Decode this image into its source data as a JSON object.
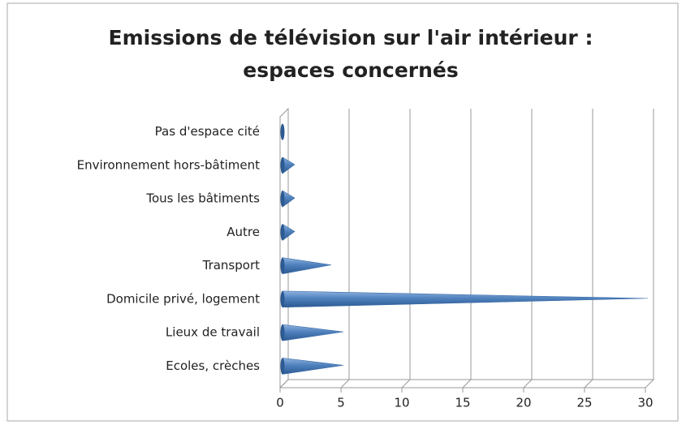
{
  "chart_data": {
    "type": "bar",
    "orientation": "horizontal",
    "title": [
      "Emissions de télévision sur l'air intérieur :",
      "espaces concernés"
    ],
    "categories": [
      "Pas d'espace cité",
      "Environnement hors-bâtiment",
      "Tous les bâtiments",
      "Autre",
      "Transport",
      "Domicile privé, logement",
      "Lieux de travail",
      "Ecoles, crèches"
    ],
    "values": [
      0,
      1,
      1,
      1,
      4,
      30,
      5,
      5
    ],
    "color": "#4f81bd",
    "xlim": [
      0,
      30
    ],
    "xticks": [
      0,
      5,
      10,
      15,
      20,
      25,
      30
    ],
    "grid": true
  }
}
